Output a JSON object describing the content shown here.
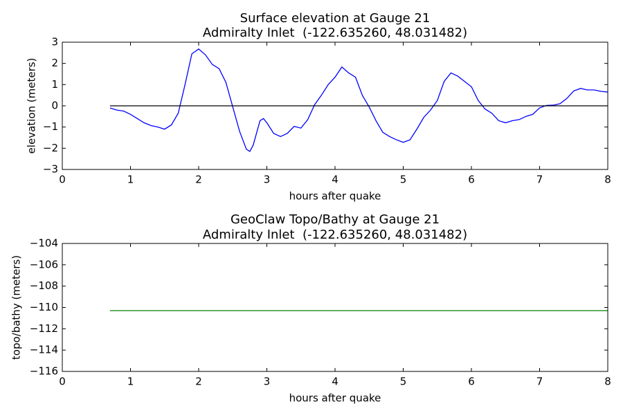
{
  "chart_data": [
    {
      "type": "line",
      "title": [
        "Surface elevation at Gauge 21",
        "Admiralty Inlet  (-122.635260, 48.031482)"
      ],
      "xlabel": "hours after quake",
      "ylabel": "elevation (meters)",
      "xlim": [
        0,
        8
      ],
      "xticks": [
        0,
        1,
        2,
        3,
        4,
        5,
        6,
        7,
        8
      ],
      "ylim": [
        -3,
        3
      ],
      "yticks": [
        {
          "value": -3,
          "label": "−3"
        },
        {
          "value": -2,
          "label": "−2"
        },
        {
          "value": -1,
          "label": "−1"
        },
        0,
        1,
        2,
        3
      ],
      "series": [
        {
          "color": "#0000ff",
          "x": [
            0.7,
            0.8,
            0.9,
            1.0,
            1.1,
            1.2,
            1.3,
            1.4,
            1.5,
            1.6,
            1.7,
            1.8,
            1.9,
            2.0,
            2.1,
            2.2,
            2.3,
            2.4,
            2.5,
            2.6,
            2.7,
            2.75,
            2.8,
            2.9,
            2.95,
            3.0,
            3.1,
            3.2,
            3.3,
            3.4,
            3.5,
            3.6,
            3.7,
            3.8,
            3.9,
            4.0,
            4.1,
            4.2,
            4.3,
            4.4,
            4.5,
            4.6,
            4.7,
            4.8,
            4.9,
            5.0,
            5.1,
            5.2,
            5.3,
            5.4,
            5.5,
            5.6,
            5.7,
            5.8,
            5.9,
            6.0,
            6.1,
            6.2,
            6.3,
            6.4,
            6.5,
            6.6,
            6.7,
            6.8,
            6.9,
            7.0,
            7.1,
            7.2,
            7.3,
            7.4,
            7.5,
            7.6,
            7.7,
            7.8,
            7.9,
            8.0
          ],
          "values": [
            -0.1,
            -0.2,
            -0.25,
            -0.4,
            -0.6,
            -0.8,
            -0.93,
            -1.0,
            -1.1,
            -0.9,
            -0.35,
            1.0,
            2.45,
            2.68,
            2.4,
            1.95,
            1.75,
            1.1,
            -0.05,
            -1.2,
            -2.05,
            -2.15,
            -1.85,
            -0.7,
            -0.6,
            -0.8,
            -1.3,
            -1.45,
            -1.3,
            -0.97,
            -1.05,
            -0.65,
            0.05,
            0.5,
            1.0,
            1.35,
            1.83,
            1.55,
            1.35,
            0.5,
            -0.05,
            -0.7,
            -1.25,
            -1.45,
            -1.6,
            -1.72,
            -1.6,
            -1.1,
            -0.55,
            -0.2,
            0.25,
            1.15,
            1.55,
            1.4,
            1.15,
            0.9,
            0.25,
            -0.15,
            -0.35,
            -0.7,
            -0.8,
            -0.7,
            -0.65,
            -0.5,
            -0.4,
            -0.1,
            0.02,
            0.03,
            0.1,
            0.35,
            0.7,
            0.82,
            0.75,
            0.75,
            0.68,
            0.65
          ]
        },
        {
          "color": "#000000",
          "x": [
            0.7,
            8
          ],
          "values": [
            0,
            0
          ]
        }
      ]
    },
    {
      "type": "line",
      "title": [
        "GeoClaw Topo/Bathy at Gauge 21",
        "Admiralty Inlet  (-122.635260, 48.031482)"
      ],
      "xlabel": "hours after quake",
      "ylabel": "topo/bathy (meters)",
      "xlim": [
        0,
        8
      ],
      "xticks": [
        0,
        1,
        2,
        3,
        4,
        5,
        6,
        7,
        8
      ],
      "ylim": [
        -116,
        -104
      ],
      "yticks": [
        {
          "value": -116,
          "label": "−116"
        },
        {
          "value": -114,
          "label": "−114"
        },
        {
          "value": -112,
          "label": "−112"
        },
        {
          "value": -110,
          "label": "−110"
        },
        {
          "value": -108,
          "label": "−108"
        },
        {
          "value": -106,
          "label": "−106"
        },
        {
          "value": -104,
          "label": "−104"
        }
      ],
      "series": [
        {
          "color": "#008000",
          "x": [
            0.7,
            8
          ],
          "values": [
            -110.3,
            -110.3
          ]
        }
      ]
    }
  ]
}
